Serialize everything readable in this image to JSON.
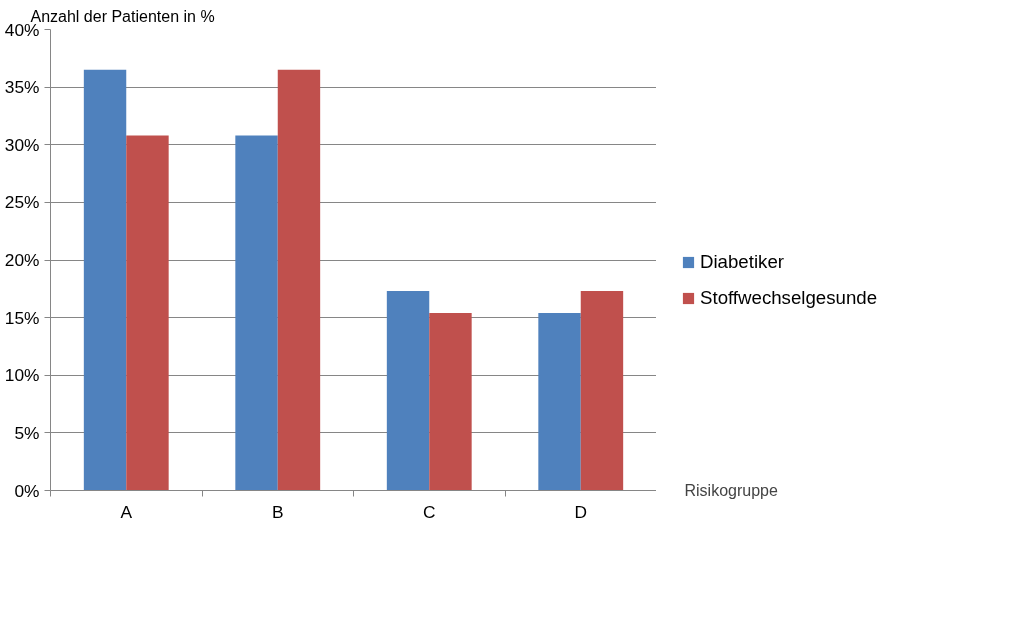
{
  "chart_data": {
    "type": "bar",
    "ylabel": "Anzahl der Patienten in %",
    "xlabel": "Risikogruppe",
    "categories": [
      "A",
      "B",
      "C",
      "D"
    ],
    "series": [
      {
        "name": "Diabetiker",
        "color": "#4f81bd",
        "values": [
          36.5,
          30.8,
          17.3,
          15.4
        ]
      },
      {
        "name": "Stoffwechselgesunde",
        "color": "#c0504d",
        "values": [
          30.8,
          36.5,
          15.4,
          17.3
        ]
      }
    ],
    "ylim": [
      0,
      40
    ],
    "yticks": [
      {
        "value": 0,
        "label": "0%"
      },
      {
        "value": 5,
        "label": "5%"
      },
      {
        "value": 10,
        "label": "10%"
      },
      {
        "value": 15,
        "label": "15%"
      },
      {
        "value": 20,
        "label": "20%"
      },
      {
        "value": 25,
        "label": "25%"
      },
      {
        "value": 30,
        "label": "30%"
      },
      {
        "value": 35,
        "label": "35%"
      },
      {
        "value": 40,
        "label": "40%"
      }
    ],
    "grid": "y",
    "legend": "right"
  }
}
